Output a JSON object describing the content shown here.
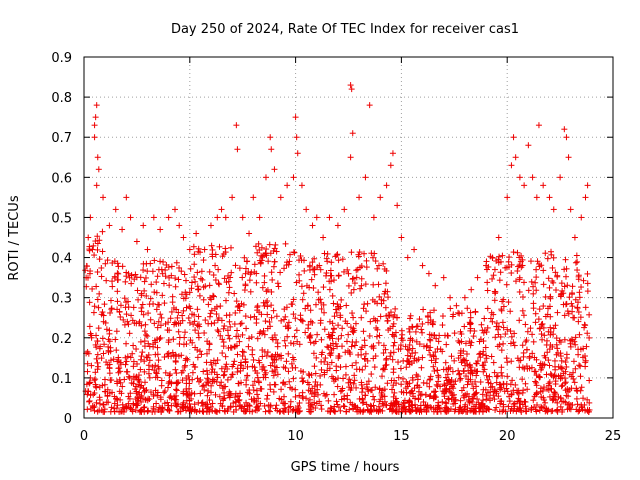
{
  "chart_data": {
    "type": "scatter",
    "title": "Day 250 of 2024, Rate Of TEC Index for receiver cas1",
    "xlabel": "GPS time / hours",
    "ylabel": "ROTI / TECUs",
    "xlim": [
      0,
      25
    ],
    "ylim": [
      0,
      0.9
    ],
    "xticks": [
      0,
      5,
      10,
      15,
      20,
      25
    ],
    "yticks": [
      0,
      0.1,
      0.2,
      0.3,
      0.4,
      0.5,
      0.6,
      0.7,
      0.8,
      0.9
    ],
    "xtick_labels": [
      "0",
      "5",
      "10",
      "15",
      "20",
      "25"
    ],
    "ytick_labels": [
      "0",
      "0.1",
      "0.2",
      "0.3",
      "0.4",
      "0.5",
      "0.6",
      "0.7",
      "0.8",
      "0.9"
    ],
    "grid": true,
    "marker": "+",
    "marker_color": "#ee0000",
    "series": [
      {
        "name": "ROTI",
        "points": [
          [
            0.1,
            0.35
          ],
          [
            0.2,
            0.45
          ],
          [
            0.3,
            0.5
          ],
          [
            0.4,
            0.42
          ],
          [
            0.5,
            0.73
          ],
          [
            0.55,
            0.75
          ],
          [
            0.6,
            0.78
          ],
          [
            0.65,
            0.65
          ],
          [
            0.7,
            0.62
          ],
          [
            0.6,
            0.58
          ],
          [
            0.5,
            0.7
          ],
          [
            0.9,
            0.55
          ],
          [
            1.2,
            0.48
          ],
          [
            1.5,
            0.52
          ],
          [
            1.8,
            0.47
          ],
          [
            2.0,
            0.55
          ],
          [
            2.2,
            0.5
          ],
          [
            2.5,
            0.44
          ],
          [
            2.8,
            0.48
          ],
          [
            3.0,
            0.42
          ],
          [
            3.3,
            0.5
          ],
          [
            3.6,
            0.47
          ],
          [
            4.0,
            0.5
          ],
          [
            4.3,
            0.52
          ],
          [
            4.5,
            0.48
          ],
          [
            4.7,
            0.45
          ],
          [
            5.0,
            0.42
          ],
          [
            5.3,
            0.46
          ],
          [
            5.7,
            0.42
          ],
          [
            6.0,
            0.48
          ],
          [
            6.3,
            0.5
          ],
          [
            6.5,
            0.52
          ],
          [
            6.7,
            0.5
          ],
          [
            7.0,
            0.55
          ],
          [
            7.2,
            0.73
          ],
          [
            7.25,
            0.67
          ],
          [
            7.5,
            0.5
          ],
          [
            7.8,
            0.46
          ],
          [
            8.0,
            0.55
          ],
          [
            8.3,
            0.5
          ],
          [
            8.6,
            0.6
          ],
          [
            8.8,
            0.7
          ],
          [
            8.85,
            0.67
          ],
          [
            9.0,
            0.62
          ],
          [
            9.3,
            0.55
          ],
          [
            9.6,
            0.58
          ],
          [
            9.9,
            0.6
          ],
          [
            10.0,
            0.75
          ],
          [
            10.05,
            0.7
          ],
          [
            10.1,
            0.66
          ],
          [
            10.3,
            0.58
          ],
          [
            10.5,
            0.52
          ],
          [
            10.8,
            0.48
          ],
          [
            11.0,
            0.5
          ],
          [
            11.3,
            0.45
          ],
          [
            11.6,
            0.5
          ],
          [
            12.0,
            0.48
          ],
          [
            12.3,
            0.52
          ],
          [
            12.6,
            0.83
          ],
          [
            12.65,
            0.82
          ],
          [
            12.7,
            0.71
          ],
          [
            12.6,
            0.65
          ],
          [
            13.0,
            0.55
          ],
          [
            13.3,
            0.6
          ],
          [
            13.5,
            0.78
          ],
          [
            13.7,
            0.5
          ],
          [
            14.0,
            0.55
          ],
          [
            14.3,
            0.58
          ],
          [
            14.5,
            0.63
          ],
          [
            14.6,
            0.66
          ],
          [
            14.8,
            0.53
          ],
          [
            15.0,
            0.45
          ],
          [
            15.3,
            0.4
          ],
          [
            15.6,
            0.42
          ],
          [
            16.0,
            0.38
          ],
          [
            16.3,
            0.36
          ],
          [
            16.6,
            0.33
          ],
          [
            17.0,
            0.35
          ],
          [
            17.3,
            0.3
          ],
          [
            17.6,
            0.28
          ],
          [
            18.0,
            0.3
          ],
          [
            18.3,
            0.32
          ],
          [
            18.6,
            0.35
          ],
          [
            19.0,
            0.38
          ],
          [
            19.3,
            0.4
          ],
          [
            19.6,
            0.45
          ],
          [
            20.0,
            0.55
          ],
          [
            20.2,
            0.63
          ],
          [
            20.3,
            0.7
          ],
          [
            20.4,
            0.65
          ],
          [
            20.6,
            0.6
          ],
          [
            20.8,
            0.58
          ],
          [
            21.0,
            0.68
          ],
          [
            21.2,
            0.6
          ],
          [
            21.4,
            0.55
          ],
          [
            21.5,
            0.73
          ],
          [
            21.7,
            0.58
          ],
          [
            22.0,
            0.55
          ],
          [
            22.2,
            0.52
          ],
          [
            22.5,
            0.6
          ],
          [
            22.7,
            0.72
          ],
          [
            22.8,
            0.7
          ],
          [
            22.9,
            0.65
          ],
          [
            23.0,
            0.52
          ],
          [
            23.2,
            0.45
          ],
          [
            23.5,
            0.5
          ],
          [
            23.7,
            0.55
          ],
          [
            23.8,
            0.58
          ]
        ]
      }
    ]
  }
}
